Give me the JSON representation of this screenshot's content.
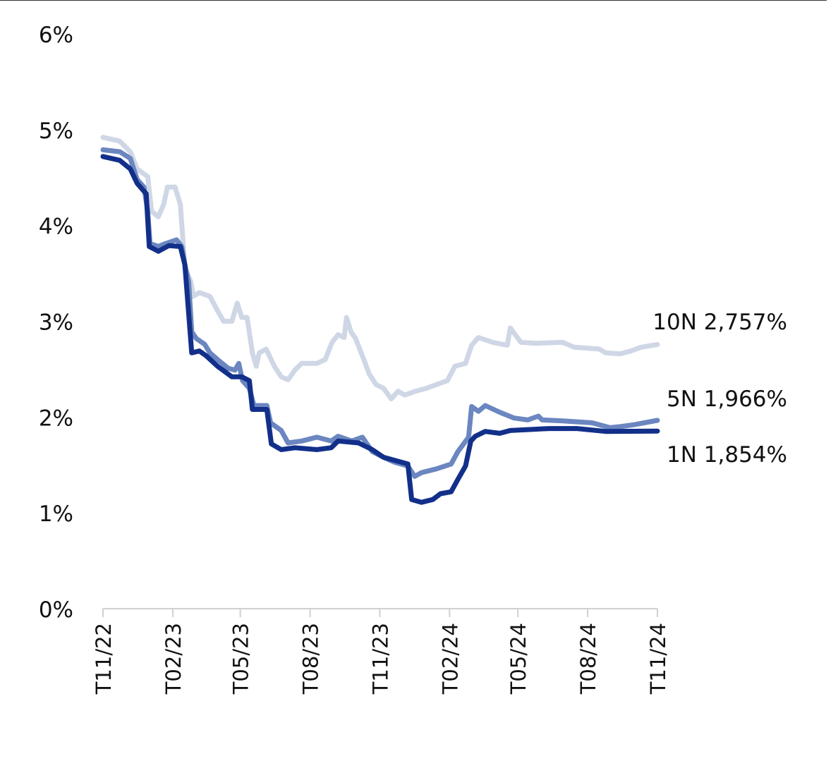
{
  "chart_data": {
    "type": "line",
    "title": "",
    "xlabel": "",
    "ylabel": "",
    "x_range": [
      "2022-11-01",
      "2024-11-01"
    ],
    "ylim": [
      0,
      6
    ],
    "y_ticks": [
      0,
      1,
      2,
      3,
      4,
      5,
      6
    ],
    "y_tick_labels": [
      "0%",
      "1%",
      "2%",
      "3%",
      "4%",
      "5%",
      "6%"
    ],
    "x_ticks": [
      "2022-11-01",
      "2023-02-01",
      "2023-05-01",
      "2023-08-01",
      "2023-11-01",
      "2024-02-01",
      "2024-05-01",
      "2024-08-01",
      "2024-11-01"
    ],
    "x_tick_labels": [
      "T11/22",
      "T02/23",
      "T05/23",
      "T08/23",
      "T11/23",
      "T02/24",
      "T05/24",
      "T08/24",
      "T11/24"
    ],
    "grid": false,
    "legend": "end-of-line labels",
    "series": [
      {
        "name": "10N",
        "end_label": "10N 2,757%",
        "color": "#cfd7e6",
        "points": [
          [
            "2022-11-01",
            4.92
          ],
          [
            "2022-11-23",
            4.88
          ],
          [
            "2022-12-07",
            4.77
          ],
          [
            "2022-12-16",
            4.59
          ],
          [
            "2022-12-30",
            4.51
          ],
          [
            "2023-01-04",
            4.15
          ],
          [
            "2023-01-13",
            4.09
          ],
          [
            "2023-01-20",
            4.22
          ],
          [
            "2023-01-25",
            4.4
          ],
          [
            "2023-02-04",
            4.4
          ],
          [
            "2023-02-11",
            4.22
          ],
          [
            "2023-02-17",
            3.56
          ],
          [
            "2023-02-25",
            3.41
          ],
          [
            "2023-02-28",
            3.26
          ],
          [
            "2023-03-08",
            3.3
          ],
          [
            "2023-03-22",
            3.26
          ],
          [
            "2023-04-01",
            3.11
          ],
          [
            "2023-04-09",
            3.0
          ],
          [
            "2023-04-20",
            3.0
          ],
          [
            "2023-04-27",
            3.19
          ],
          [
            "2023-05-03",
            3.04
          ],
          [
            "2023-05-10",
            3.04
          ],
          [
            "2023-05-17",
            2.67
          ],
          [
            "2023-05-22",
            2.53
          ],
          [
            "2023-05-26",
            2.67
          ],
          [
            "2023-06-04",
            2.71
          ],
          [
            "2023-06-15",
            2.53
          ],
          [
            "2023-06-24",
            2.42
          ],
          [
            "2023-07-03",
            2.39
          ],
          [
            "2023-07-12",
            2.49
          ],
          [
            "2023-07-21",
            2.56
          ],
          [
            "2023-08-10",
            2.56
          ],
          [
            "2023-08-21",
            2.6
          ],
          [
            "2023-08-30",
            2.78
          ],
          [
            "2023-09-07",
            2.86
          ],
          [
            "2023-09-15",
            2.83
          ],
          [
            "2023-09-18",
            3.04
          ],
          [
            "2023-09-24",
            2.89
          ],
          [
            "2023-09-30",
            2.82
          ],
          [
            "2023-10-09",
            2.64
          ],
          [
            "2023-10-18",
            2.45
          ],
          [
            "2023-10-27",
            2.34
          ],
          [
            "2023-11-06",
            2.3
          ],
          [
            "2023-11-16",
            2.19
          ],
          [
            "2023-11-25",
            2.27
          ],
          [
            "2023-12-04",
            2.23
          ],
          [
            "2023-12-18",
            2.27
          ],
          [
            "2024-01-01",
            2.3
          ],
          [
            "2024-01-15",
            2.34
          ],
          [
            "2024-01-29",
            2.38
          ],
          [
            "2024-02-08",
            2.53
          ],
          [
            "2024-02-22",
            2.56
          ],
          [
            "2024-03-01",
            2.75
          ],
          [
            "2024-03-10",
            2.83
          ],
          [
            "2024-03-29",
            2.78
          ],
          [
            "2024-04-17",
            2.75
          ],
          [
            "2024-04-21",
            2.93
          ],
          [
            "2024-05-05",
            2.78
          ],
          [
            "2024-05-24",
            2.77
          ],
          [
            "2024-06-29",
            2.78
          ],
          [
            "2024-07-14",
            2.73
          ],
          [
            "2024-08-16",
            2.71
          ],
          [
            "2024-08-25",
            2.67
          ],
          [
            "2024-09-13",
            2.66
          ],
          [
            "2024-09-27",
            2.69
          ],
          [
            "2024-10-11",
            2.73
          ],
          [
            "2024-11-01",
            2.757
          ]
        ]
      },
      {
        "name": "5N",
        "end_label": "5N 1,966%",
        "color": "#6b86c0",
        "points": [
          [
            "2022-11-01",
            4.79
          ],
          [
            "2022-11-23",
            4.77
          ],
          [
            "2022-12-07",
            4.7
          ],
          [
            "2022-12-16",
            4.48
          ],
          [
            "2022-12-25",
            4.4
          ],
          [
            "2022-12-30",
            4.15
          ],
          [
            "2023-01-02",
            3.81
          ],
          [
            "2023-01-13",
            3.78
          ],
          [
            "2023-01-22",
            3.81
          ],
          [
            "2023-02-06",
            3.85
          ],
          [
            "2023-02-13",
            3.78
          ],
          [
            "2023-02-17",
            3.59
          ],
          [
            "2023-02-22",
            3.41
          ],
          [
            "2023-02-26",
            2.89
          ],
          [
            "2023-03-04",
            2.82
          ],
          [
            "2023-03-15",
            2.76
          ],
          [
            "2023-03-22",
            2.67
          ],
          [
            "2023-04-01",
            2.6
          ],
          [
            "2023-04-15",
            2.51
          ],
          [
            "2023-04-24",
            2.49
          ],
          [
            "2023-04-29",
            2.56
          ],
          [
            "2023-05-04",
            2.38
          ],
          [
            "2023-05-13",
            2.3
          ],
          [
            "2023-05-19",
            2.12
          ],
          [
            "2023-06-05",
            2.12
          ],
          [
            "2023-06-10",
            1.94
          ],
          [
            "2023-06-24",
            1.86
          ],
          [
            "2023-07-03",
            1.73
          ],
          [
            "2023-07-21",
            1.75
          ],
          [
            "2023-08-10",
            1.79
          ],
          [
            "2023-08-29",
            1.75
          ],
          [
            "2023-09-07",
            1.8
          ],
          [
            "2023-09-25",
            1.75
          ],
          [
            "2023-10-09",
            1.79
          ],
          [
            "2023-10-22",
            1.64
          ],
          [
            "2023-11-06",
            1.58
          ],
          [
            "2023-11-20",
            1.53
          ],
          [
            "2023-12-08",
            1.49
          ],
          [
            "2023-12-17",
            1.38
          ],
          [
            "2023-12-26",
            1.42
          ],
          [
            "2024-01-15",
            1.46
          ],
          [
            "2024-02-03",
            1.51
          ],
          [
            "2024-02-12",
            1.64
          ],
          [
            "2024-02-26",
            1.79
          ],
          [
            "2024-03-01",
            2.11
          ],
          [
            "2024-03-10",
            2.06
          ],
          [
            "2024-03-19",
            2.12
          ],
          [
            "2024-04-07",
            2.05
          ],
          [
            "2024-04-26",
            1.99
          ],
          [
            "2024-05-14",
            1.97
          ],
          [
            "2024-05-28",
            2.01
          ],
          [
            "2024-06-02",
            1.97
          ],
          [
            "2024-06-29",
            1.96
          ],
          [
            "2024-08-07",
            1.94
          ],
          [
            "2024-08-30",
            1.89
          ],
          [
            "2024-09-13",
            1.9
          ],
          [
            "2024-10-01",
            1.92
          ],
          [
            "2024-11-01",
            1.966
          ]
        ]
      },
      {
        "name": "1N",
        "end_label": "1N 1,854%",
        "color": "#12308a",
        "points": [
          [
            "2022-11-01",
            4.72
          ],
          [
            "2022-11-23",
            4.68
          ],
          [
            "2022-12-07",
            4.59
          ],
          [
            "2022-12-16",
            4.44
          ],
          [
            "2022-12-28",
            4.33
          ],
          [
            "2023-01-01",
            3.78
          ],
          [
            "2023-01-13",
            3.73
          ],
          [
            "2023-01-27",
            3.79
          ],
          [
            "2023-02-11",
            3.78
          ],
          [
            "2023-02-17",
            3.59
          ],
          [
            "2023-02-26",
            2.67
          ],
          [
            "2023-03-08",
            2.69
          ],
          [
            "2023-03-17",
            2.64
          ],
          [
            "2023-04-01",
            2.53
          ],
          [
            "2023-04-20",
            2.42
          ],
          [
            "2023-05-03",
            2.42
          ],
          [
            "2023-05-13",
            2.38
          ],
          [
            "2023-05-17",
            2.08
          ],
          [
            "2023-06-05",
            2.08
          ],
          [
            "2023-06-11",
            1.72
          ],
          [
            "2023-06-24",
            1.66
          ],
          [
            "2023-07-12",
            1.68
          ],
          [
            "2023-08-10",
            1.66
          ],
          [
            "2023-08-29",
            1.68
          ],
          [
            "2023-09-07",
            1.75
          ],
          [
            "2023-10-04",
            1.73
          ],
          [
            "2023-10-22",
            1.66
          ],
          [
            "2023-11-06",
            1.58
          ],
          [
            "2023-11-20",
            1.55
          ],
          [
            "2023-12-08",
            1.51
          ],
          [
            "2023-12-13",
            1.14
          ],
          [
            "2023-12-26",
            1.11
          ],
          [
            "2024-01-10",
            1.14
          ],
          [
            "2024-01-20",
            1.2
          ],
          [
            "2024-02-03",
            1.22
          ],
          [
            "2024-02-12",
            1.35
          ],
          [
            "2024-02-22",
            1.49
          ],
          [
            "2024-02-29",
            1.75
          ],
          [
            "2024-03-06",
            1.8
          ],
          [
            "2024-03-19",
            1.85
          ],
          [
            "2024-04-07",
            1.83
          ],
          [
            "2024-04-21",
            1.86
          ],
          [
            "2024-06-11",
            1.88
          ],
          [
            "2024-07-18",
            1.88
          ],
          [
            "2024-08-25",
            1.85
          ],
          [
            "2024-11-01",
            1.854
          ]
        ]
      }
    ]
  }
}
